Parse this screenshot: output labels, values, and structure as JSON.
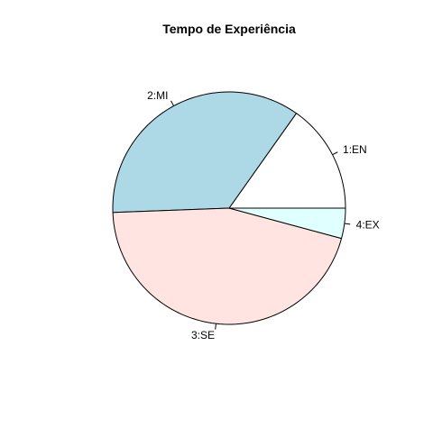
{
  "chart_data": {
    "type": "pie",
    "title": "Tempo de Experiência",
    "categories": [
      "1:EN",
      "2:MI",
      "3:SE",
      "4:EX"
    ],
    "values": [
      15.2,
      35.4,
      45.2,
      4.2
    ],
    "colors": [
      "#ffffff",
      "#add8e6",
      "#ffe4e1",
      "#e0ffff"
    ],
    "start": "3 o'clock",
    "direction": "counter-clockwise"
  }
}
